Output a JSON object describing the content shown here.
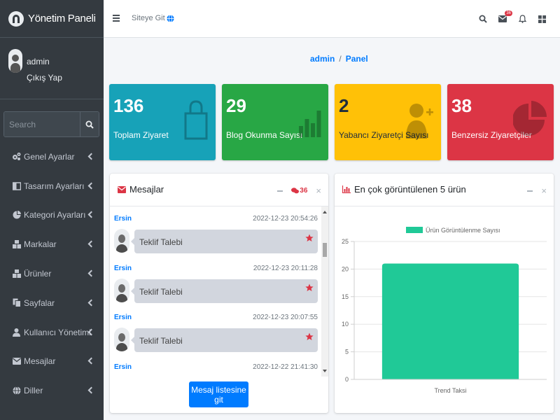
{
  "brand": {
    "title": "Yönetim Paneli"
  },
  "user": {
    "name": "admin",
    "logout": "Çıkış Yap"
  },
  "sidebar": {
    "search_placeholder": "Search",
    "items": [
      {
        "label": "Genel Ayarlar",
        "icon": "cogs-icon"
      },
      {
        "label": "Tasarım Ayarları",
        "icon": "columns-icon"
      },
      {
        "label": "Kategori Ayarları",
        "icon": "pie-icon"
      },
      {
        "label": "Markalar",
        "icon": "boxes-icon"
      },
      {
        "label": "Ürünler",
        "icon": "boxes-icon"
      },
      {
        "label": "Sayfalar",
        "icon": "copy-icon"
      },
      {
        "label": "Kullanıcı Yönetimi",
        "icon": "user-icon"
      },
      {
        "label": "Mesajlar",
        "icon": "envelope-icon"
      },
      {
        "label": "Diller",
        "icon": "globe-icon"
      }
    ]
  },
  "topbar": {
    "site_link": "Siteye Git",
    "mail_badge": "36"
  },
  "breadcrumb": {
    "home": "admin",
    "sep": "/",
    "current": "Panel"
  },
  "stats": [
    {
      "value": "136",
      "label": "Toplam Ziyaret",
      "color": "#17a2b8"
    },
    {
      "value": "29",
      "label": "Blog Okunma Sayısı",
      "color": "#28a745"
    },
    {
      "value": "2",
      "label": "Yabancı Ziyaretçi Sayısı",
      "color": "#ffc107"
    },
    {
      "value": "38",
      "label": "Benzersiz Ziyaretçiler",
      "color": "#dc3545"
    }
  ],
  "messages_card": {
    "title": "Mesajlar",
    "badge": "36",
    "button": "Mesaj listesine git",
    "items": [
      {
        "name": "Ersin",
        "time": "2022-12-23 20:54:26",
        "text": "Teklif Talebi"
      },
      {
        "name": "Ersin",
        "time": "2022-12-23 20:11:28",
        "text": "Teklif Talebi"
      },
      {
        "name": "Ersin",
        "time": "2022-12-23 20:07:55",
        "text": "Teklif Talebi"
      },
      {
        "name": "Ersin",
        "time": "2022-12-22 21:41:30",
        "text": ""
      }
    ]
  },
  "chart_card": {
    "title": "En çok görüntülenen 5 ürün"
  },
  "chart_data": {
    "type": "bar",
    "categories": [
      "Trend Taksi"
    ],
    "series": [
      {
        "name": "Ürün Görüntülenme Sayısı",
        "values": [
          21
        ],
        "color": "#20c997"
      }
    ],
    "ylim": [
      0,
      25
    ],
    "yticks": [
      "0",
      "5",
      "10",
      "15",
      "20",
      "25"
    ],
    "grid": true,
    "legend": "top-center"
  }
}
